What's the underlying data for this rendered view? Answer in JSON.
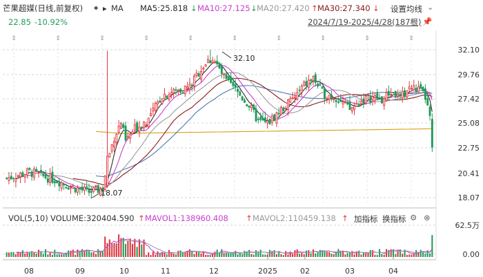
{
  "header": {
    "title": "芒果超媒(日线,前复权)",
    "ma_toggle": "MA",
    "ma5": "MA5:25.818",
    "ma10": "MA10:27.125",
    "ma20": "MA20:27.420",
    "ma30": "MA30:27.340",
    "settings": "设置均线",
    "price": "22.85",
    "change": "-10.92%",
    "range": "2024/7/19-2025/4/28(187根)"
  },
  "vol_header": {
    "label": "VOL(5,10)",
    "volume": "VOLUME:320404.590",
    "mavol1": "MAVOL1:138960.408",
    "mavol2": "MAVOL2:110459.138",
    "add_indicator": "加指标",
    "switch_indicator": "换指标"
  },
  "colors": {
    "up": "#e0333b",
    "down": "#1f9c5a",
    "ma5": "#2a2a2a",
    "ma10": "#c73fcf",
    "ma20": "#9a9a9a",
    "ma30": "#8b1a1a",
    "ma60": "#4c78b0",
    "ma120": "#d4a017"
  },
  "chart_data": {
    "type": "candlestick",
    "price_axis": {
      "ticks": [
        "32.10",
        "29.76",
        "27.42",
        "25.08",
        "22.75",
        "20.41",
        "18.07"
      ],
      "range": [
        18.07,
        32.1
      ]
    },
    "volume_axis": {
      "ticks": [
        "62.5万",
        "0.00"
      ]
    },
    "x_labels": [
      "08",
      "09",
      "10",
      "11",
      "12",
      "2025",
      "02",
      "03",
      "04"
    ],
    "annotations": {
      "high": "32.10",
      "low": "18.07"
    },
    "series": [
      {
        "name": "MA5",
        "value": 25.818
      },
      {
        "name": "MA10",
        "value": 27.125
      },
      {
        "name": "MA20",
        "value": 27.42
      },
      {
        "name": "MA30",
        "value": 27.34
      }
    ],
    "last_close": 22.85,
    "last_volume": 320404.59,
    "mavol1": 138960.408,
    "mavol2": 110459.138,
    "bar_count": 187
  }
}
